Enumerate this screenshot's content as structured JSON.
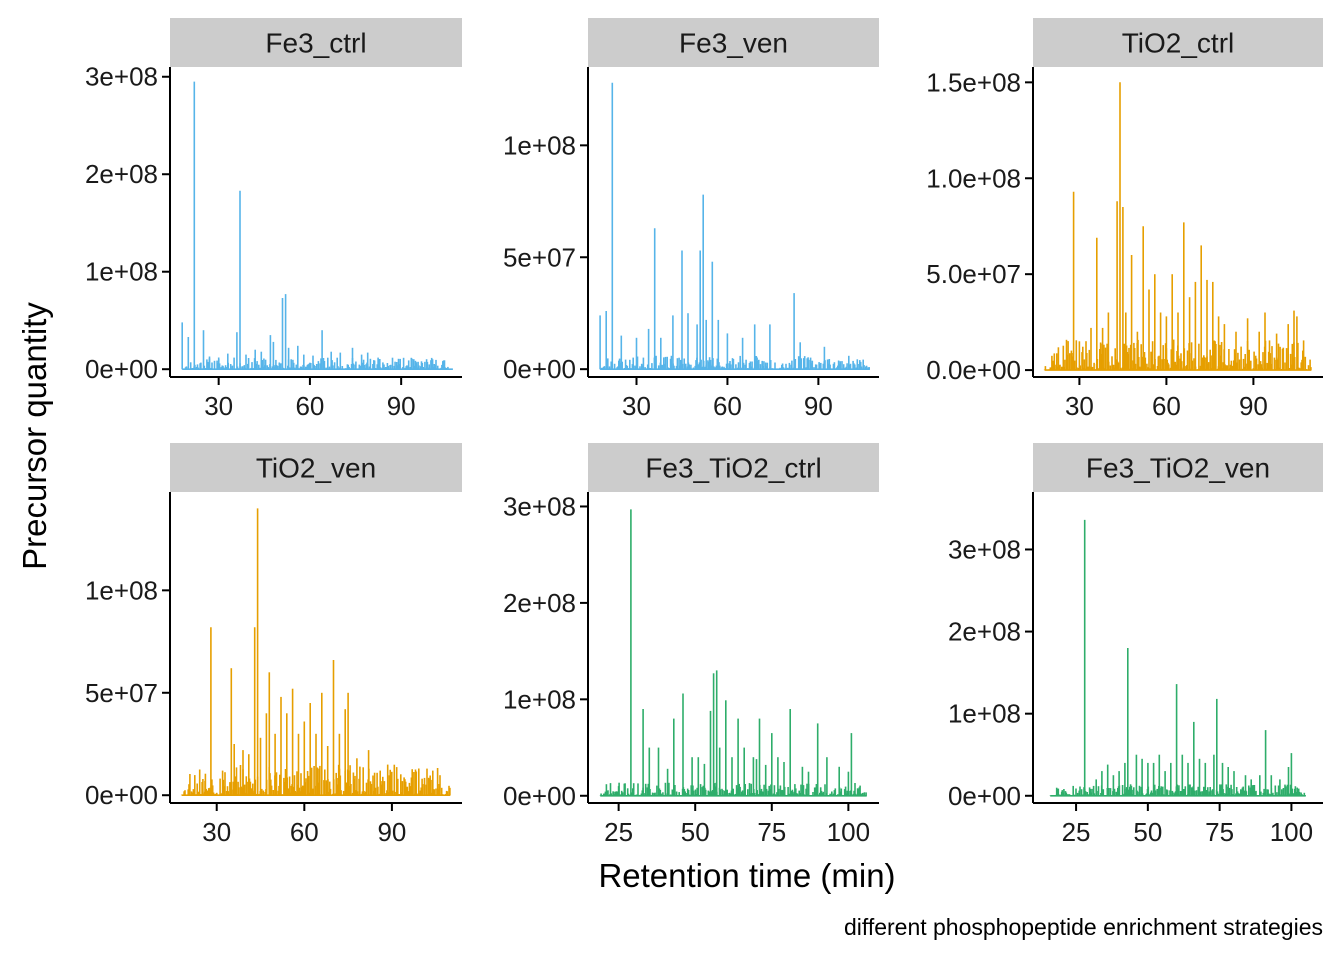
{
  "figure": {
    "xlabel": "Retention time (min)",
    "ylabel": "Precursor quantity",
    "caption": "different phosphopeptide enrichment strategies",
    "colors": {
      "Fe3": "#56B4E9",
      "TiO2": "#E69F00",
      "Fe3_TiO2": "#2EAD6A",
      "strip": "#cccccc",
      "axis": "#000000"
    }
  },
  "chart_data": [
    {
      "type": "bar",
      "title": "Fe3_ctrl",
      "color": "#56B4E9",
      "xlim": [
        14,
        110
      ],
      "ylim": [
        -8000000,
        310000000
      ],
      "xticks": [
        30,
        60,
        90
      ],
      "xticklabels": [
        "30",
        "60",
        "90"
      ],
      "yticks": [
        0,
        100000000,
        200000000,
        300000000
      ],
      "yticklabels": [
        "0e+00",
        "1e+08",
        "2e+08",
        "3e+08"
      ],
      "x_range": [
        18,
        107
      ],
      "peaks": [
        [
          18,
          48000000
        ],
        [
          20,
          33000000
        ],
        [
          22,
          295000000
        ],
        [
          25,
          40000000
        ],
        [
          27,
          13000000
        ],
        [
          30,
          12000000
        ],
        [
          33,
          16000000
        ],
        [
          36,
          38000000
        ],
        [
          37,
          183000000
        ],
        [
          39,
          15000000
        ],
        [
          42,
          20000000
        ],
        [
          44,
          18000000
        ],
        [
          47,
          35000000
        ],
        [
          48,
          28000000
        ],
        [
          51,
          73000000
        ],
        [
          52,
          77000000
        ],
        [
          53,
          22000000
        ],
        [
          56,
          24000000
        ],
        [
          58,
          15000000
        ],
        [
          61,
          14000000
        ],
        [
          64,
          40000000
        ],
        [
          67,
          18000000
        ],
        [
          70,
          17000000
        ],
        [
          74,
          22000000
        ],
        [
          77,
          15000000
        ],
        [
          79,
          17000000
        ],
        [
          84,
          7000000
        ],
        [
          89,
          4000000
        ],
        [
          95,
          5000000
        ]
      ],
      "baseline": 12000000,
      "seed": 11
    },
    {
      "type": "bar",
      "title": "Fe3_ven",
      "color": "#56B4E9",
      "xlim": [
        14,
        110
      ],
      "ylim": [
        -3500000,
        135000000
      ],
      "xticks": [
        30,
        60,
        90
      ],
      "xticklabels": [
        "30",
        "60",
        "90"
      ],
      "yticks": [
        0,
        50000000,
        100000000
      ],
      "yticklabels": [
        "0e+00",
        "5e+07",
        "1e+08"
      ],
      "x_range": [
        18,
        107
      ],
      "peaks": [
        [
          18,
          24000000
        ],
        [
          20,
          26000000
        ],
        [
          22,
          128000000
        ],
        [
          25,
          15000000
        ],
        [
          30,
          14000000
        ],
        [
          34,
          18000000
        ],
        [
          36,
          63000000
        ],
        [
          38,
          14000000
        ],
        [
          42,
          24000000
        ],
        [
          45,
          53000000
        ],
        [
          47,
          25000000
        ],
        [
          50,
          20000000
        ],
        [
          51,
          53000000
        ],
        [
          52,
          78000000
        ],
        [
          53,
          22000000
        ],
        [
          55,
          48000000
        ],
        [
          57,
          22000000
        ],
        [
          60,
          16000000
        ],
        [
          65,
          14000000
        ],
        [
          69,
          20000000
        ],
        [
          74,
          20000000
        ],
        [
          82,
          34000000
        ],
        [
          84,
          12000000
        ],
        [
          92,
          10000000
        ]
      ],
      "baseline": 6000000,
      "seed": 23
    },
    {
      "type": "bar",
      "title": "TiO2_ctrl",
      "color": "#E69F00",
      "xlim": [
        14,
        114
      ],
      "ylim": [
        -3600000,
        158000000
      ],
      "xticks": [
        30,
        60,
        90
      ],
      "xticklabels": [
        "30",
        "60",
        "90"
      ],
      "yticks": [
        0,
        50000000,
        100000000,
        150000000
      ],
      "yticklabels": [
        "0.0e+00",
        "5.0e+07",
        "1.0e+08",
        "1.5e+08"
      ],
      "x_range": [
        18,
        110
      ],
      "peaks": [
        [
          22,
          2000000
        ],
        [
          26,
          8000000
        ],
        [
          28,
          93000000
        ],
        [
          30,
          15000000
        ],
        [
          34,
          22000000
        ],
        [
          36,
          69000000
        ],
        [
          38,
          22000000
        ],
        [
          40,
          30000000
        ],
        [
          43,
          88000000
        ],
        [
          44,
          150000000
        ],
        [
          45,
          85000000
        ],
        [
          46,
          30000000
        ],
        [
          48,
          60000000
        ],
        [
          50,
          20000000
        ],
        [
          52,
          75000000
        ],
        [
          54,
          42000000
        ],
        [
          56,
          50000000
        ],
        [
          58,
          30000000
        ],
        [
          60,
          28000000
        ],
        [
          62,
          50000000
        ],
        [
          64,
          30000000
        ],
        [
          66,
          77000000
        ],
        [
          68,
          38000000
        ],
        [
          70,
          46000000
        ],
        [
          72,
          65000000
        ],
        [
          74,
          47000000
        ],
        [
          76,
          46000000
        ],
        [
          78,
          28000000
        ],
        [
          80,
          24000000
        ],
        [
          84,
          20000000
        ],
        [
          88,
          27000000
        ],
        [
          92,
          20000000
        ],
        [
          94,
          30000000
        ],
        [
          98,
          19000000
        ],
        [
          102,
          24000000
        ],
        [
          104,
          31000000
        ],
        [
          105,
          28000000
        ]
      ],
      "baseline": 16000000,
      "seed": 37
    },
    {
      "type": "bar",
      "title": "TiO2_ven",
      "color": "#E69F00",
      "xlim": [
        14,
        114
      ],
      "ylim": [
        -3800000,
        148000000
      ],
      "xticks": [
        30,
        60,
        90
      ],
      "xticklabels": [
        "30",
        "60",
        "90"
      ],
      "yticks": [
        0,
        50000000,
        100000000
      ],
      "yticklabels": [
        "0e+00",
        "5e+07",
        "1e+08"
      ],
      "x_range": [
        18,
        110
      ],
      "peaks": [
        [
          22,
          3000000
        ],
        [
          26,
          7000000
        ],
        [
          28,
          82000000
        ],
        [
          32,
          12000000
        ],
        [
          35,
          62000000
        ],
        [
          36,
          25000000
        ],
        [
          39,
          22000000
        ],
        [
          41,
          20000000
        ],
        [
          43,
          82000000
        ],
        [
          44,
          140000000
        ],
        [
          45,
          28000000
        ],
        [
          47,
          40000000
        ],
        [
          48,
          60000000
        ],
        [
          50,
          30000000
        ],
        [
          52,
          48000000
        ],
        [
          54,
          40000000
        ],
        [
          56,
          52000000
        ],
        [
          58,
          30000000
        ],
        [
          60,
          36000000
        ],
        [
          62,
          45000000
        ],
        [
          64,
          30000000
        ],
        [
          66,
          50000000
        ],
        [
          68,
          24000000
        ],
        [
          70,
          66000000
        ],
        [
          72,
          30000000
        ],
        [
          74,
          42000000
        ],
        [
          75,
          50000000
        ],
        [
          78,
          18000000
        ],
        [
          82,
          22000000
        ],
        [
          86,
          12000000
        ],
        [
          92,
          8000000
        ],
        [
          96,
          6000000
        ],
        [
          102,
          13000000
        ],
        [
          104,
          12000000
        ]
      ],
      "baseline": 15000000,
      "seed": 53
    },
    {
      "type": "bar",
      "title": "Fe3_TiO2_ctrl",
      "color": "#2EAD6A",
      "xlim": [
        15,
        110
      ],
      "ylim": [
        -7500000,
        315000000
      ],
      "xticks": [
        25,
        50,
        75,
        100
      ],
      "xticklabels": [
        "25",
        "50",
        "75",
        "100"
      ],
      "yticks": [
        0,
        100000000,
        200000000,
        300000000
      ],
      "yticklabels": [
        "0e+00",
        "1e+08",
        "2e+08",
        "3e+08"
      ],
      "x_range": [
        19,
        106
      ],
      "peaks": [
        [
          21,
          12000000
        ],
        [
          25,
          10000000
        ],
        [
          29,
          297000000
        ],
        [
          33,
          90000000
        ],
        [
          35,
          50000000
        ],
        [
          38,
          50000000
        ],
        [
          41,
          28000000
        ],
        [
          43,
          80000000
        ],
        [
          46,
          106000000
        ],
        [
          49,
          40000000
        ],
        [
          51,
          40000000
        ],
        [
          53,
          33000000
        ],
        [
          55,
          88000000
        ],
        [
          56,
          127000000
        ],
        [
          57,
          130000000
        ],
        [
          58,
          50000000
        ],
        [
          60,
          99000000
        ],
        [
          62,
          40000000
        ],
        [
          64,
          80000000
        ],
        [
          66,
          50000000
        ],
        [
          69,
          40000000
        ],
        [
          70,
          38000000
        ],
        [
          71,
          80000000
        ],
        [
          73,
          32000000
        ],
        [
          75,
          65000000
        ],
        [
          77,
          40000000
        ],
        [
          79,
          35000000
        ],
        [
          81,
          90000000
        ],
        [
          85,
          30000000
        ],
        [
          87,
          25000000
        ],
        [
          90,
          75000000
        ],
        [
          93,
          40000000
        ],
        [
          97,
          30000000
        ],
        [
          100,
          25000000
        ],
        [
          101,
          65000000
        ]
      ],
      "baseline": 14000000,
      "seed": 71
    },
    {
      "type": "bar",
      "title": "Fe3_TiO2_ven",
      "color": "#2EAD6A",
      "xlim": [
        10,
        111
      ],
      "ylim": [
        -8800000,
        370000000
      ],
      "xticks": [
        25,
        50,
        75,
        100
      ],
      "xticklabels": [
        "25",
        "50",
        "75",
        "100"
      ],
      "yticks": [
        0,
        100000000,
        200000000,
        300000000
      ],
      "yticklabels": [
        "0e+00",
        "1e+08",
        "2e+08",
        "3e+08"
      ],
      "x_range": [
        16,
        105
      ],
      "peaks": [
        [
          20,
          5000000
        ],
        [
          24,
          12000000
        ],
        [
          28,
          336000000
        ],
        [
          32,
          20000000
        ],
        [
          34,
          30000000
        ],
        [
          36,
          38000000
        ],
        [
          38,
          25000000
        ],
        [
          40,
          30000000
        ],
        [
          42,
          40000000
        ],
        [
          43,
          180000000
        ],
        [
          46,
          50000000
        ],
        [
          48,
          45000000
        ],
        [
          50,
          40000000
        ],
        [
          52,
          40000000
        ],
        [
          54,
          50000000
        ],
        [
          56,
          30000000
        ],
        [
          58,
          40000000
        ],
        [
          60,
          136000000
        ],
        [
          62,
          50000000
        ],
        [
          64,
          40000000
        ],
        [
          66,
          90000000
        ],
        [
          68,
          45000000
        ],
        [
          70,
          40000000
        ],
        [
          73,
          50000000
        ],
        [
          74,
          118000000
        ],
        [
          76,
          40000000
        ],
        [
          78,
          35000000
        ],
        [
          80,
          30000000
        ],
        [
          84,
          25000000
        ],
        [
          86,
          20000000
        ],
        [
          89,
          25000000
        ],
        [
          91,
          80000000
        ],
        [
          93,
          25000000
        ],
        [
          96,
          20000000
        ],
        [
          99,
          35000000
        ],
        [
          100,
          52000000
        ],
        [
          102,
          10000000
        ]
      ],
      "baseline": 14000000,
      "seed": 97
    }
  ]
}
